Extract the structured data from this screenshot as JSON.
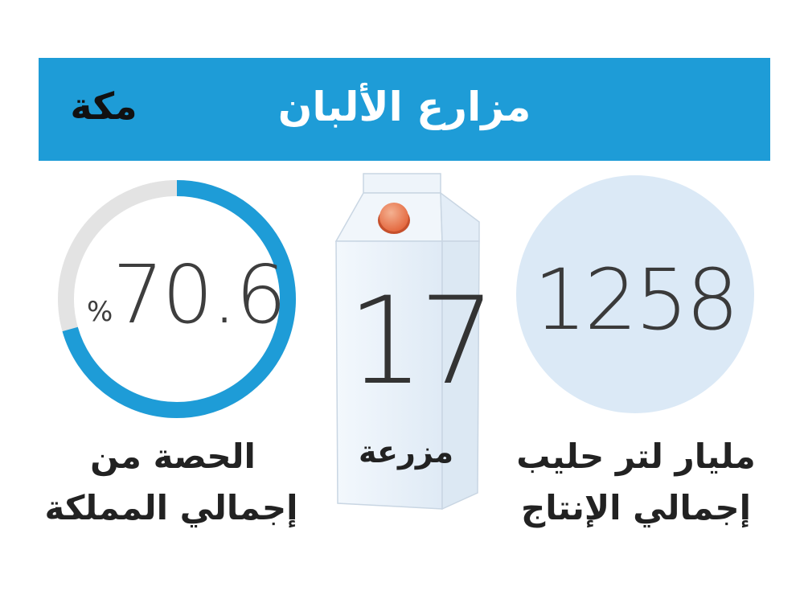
{
  "header": {
    "title": "مزارع الألبان",
    "background": "#1e9cd7"
  },
  "logo": {
    "word": "مكة",
    "icon": "makkah-newspaper-logo"
  },
  "stats": [
    {
      "id": "share",
      "value": "70.6",
      "unit": "%",
      "fraction": 0.706,
      "caption_line1": "الحصة من",
      "caption_line2": "إجمالي المملكة",
      "ring_color": "#1e9cd7",
      "track_color": "#e3e3e3"
    },
    {
      "id": "farms",
      "value": "17",
      "caption_line1": "مزرعة",
      "icon": "milk-carton-icon"
    },
    {
      "id": "production",
      "value": "1258",
      "caption_line1": "مليار لتر حليب",
      "caption_line2": "إجمالي الإنتاج",
      "circle_color": "#dbe9f6"
    }
  ]
}
